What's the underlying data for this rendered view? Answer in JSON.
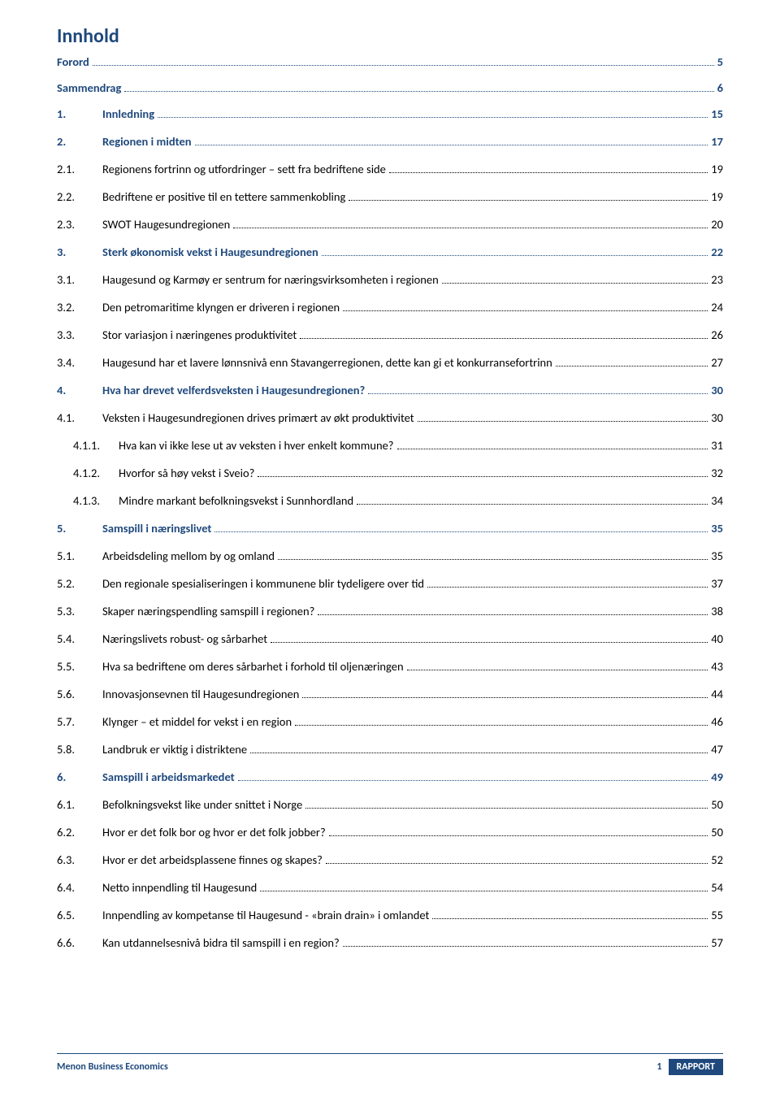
{
  "title": "Innhold",
  "colors": {
    "accent": "#1f497d",
    "text": "#000000",
    "bg": "#ffffff"
  },
  "toc": [
    {
      "level": "top",
      "num": "",
      "label": "Forord",
      "page": "5"
    },
    {
      "level": "top",
      "num": "",
      "label": "Sammendrag",
      "page": "6"
    },
    {
      "level": "lvl0",
      "num": "1.",
      "label": "Innledning",
      "page": "15"
    },
    {
      "level": "lvl0",
      "num": "2.",
      "label": "Regionen i midten",
      "page": "17"
    },
    {
      "level": "lvl1",
      "num": "2.1.",
      "label": "Regionens fortrinn og utfordringer – sett fra bedriftene side",
      "page": "19"
    },
    {
      "level": "lvl1",
      "num": "2.2.",
      "label": "Bedriftene er positive til en tettere sammenkobling",
      "page": "19"
    },
    {
      "level": "lvl1",
      "num": "2.3.",
      "label": "SWOT Haugesundregionen",
      "page": "20"
    },
    {
      "level": "lvl0",
      "num": "3.",
      "label": "Sterk økonomisk vekst i Haugesundregionen",
      "page": "22"
    },
    {
      "level": "lvl1",
      "num": "3.1.",
      "label": "Haugesund og Karmøy er sentrum for næringsvirksomheten i regionen",
      "page": "23"
    },
    {
      "level": "lvl1",
      "num": "3.2.",
      "label": "Den petromaritime klyngen er driveren i regionen",
      "page": "24"
    },
    {
      "level": "lvl1",
      "num": "3.3.",
      "label": "Stor variasjon i næringenes produktivitet",
      "page": "26"
    },
    {
      "level": "lvl1",
      "num": "3.4.",
      "label": "Haugesund har et lavere lønnsnivå enn Stavangerregionen, dette kan gi et konkurransefortrinn",
      "page": "27"
    },
    {
      "level": "lvl0",
      "num": "4.",
      "label": "Hva har drevet velferdsveksten i Haugesundregionen?",
      "page": "30"
    },
    {
      "level": "lvl1",
      "num": "4.1.",
      "label": "Veksten i Haugesundregionen drives primært av økt produktivitet",
      "page": "30"
    },
    {
      "level": "lvl2",
      "num": "4.1.1.",
      "label": "Hva kan vi ikke lese ut av veksten i hver enkelt kommune?",
      "page": "31"
    },
    {
      "level": "lvl2",
      "num": "4.1.2.",
      "label": "Hvorfor så høy vekst i Sveio?",
      "page": "32"
    },
    {
      "level": "lvl2",
      "num": "4.1.3.",
      "label": "Mindre markant befolkningsvekst i Sunnhordland",
      "page": "34"
    },
    {
      "level": "lvl0",
      "num": "5.",
      "label": "Samspill i næringslivet",
      "page": "35"
    },
    {
      "level": "lvl1",
      "num": "5.1.",
      "label": "Arbeidsdeling mellom by og omland",
      "page": "35"
    },
    {
      "level": "lvl1",
      "num": "5.2.",
      "label": "Den regionale spesialiseringen i kommunene blir tydeligere over tid",
      "page": "37"
    },
    {
      "level": "lvl1",
      "num": "5.3.",
      "label": "Skaper næringspendling samspill i regionen?",
      "page": "38"
    },
    {
      "level": "lvl1",
      "num": "5.4.",
      "label": "Næringslivets robust- og sårbarhet",
      "page": "40"
    },
    {
      "level": "lvl1",
      "num": "5.5.",
      "label": "Hva sa bedriftene om deres sårbarhet i forhold til oljenæringen",
      "page": "43"
    },
    {
      "level": "lvl1",
      "num": "5.6.",
      "label": "Innovasjonsevnen til Haugesundregionen",
      "page": "44"
    },
    {
      "level": "lvl1",
      "num": "5.7.",
      "label": "Klynger – et middel for vekst i en region",
      "page": "46"
    },
    {
      "level": "lvl1",
      "num": "5.8.",
      "label": "Landbruk er viktig i distriktene",
      "page": "47"
    },
    {
      "level": "lvl0",
      "num": "6.",
      "label": "Samspill i arbeidsmarkedet",
      "page": "49"
    },
    {
      "level": "lvl1",
      "num": "6.1.",
      "label": "Befolkningsvekst like under snittet i Norge",
      "page": "50"
    },
    {
      "level": "lvl1",
      "num": "6.2.",
      "label": "Hvor er det folk bor og hvor er det folk jobber?",
      "page": "50"
    },
    {
      "level": "lvl1",
      "num": "6.3.",
      "label": "Hvor er det arbeidsplassene finnes og skapes?",
      "page": "52"
    },
    {
      "level": "lvl1",
      "num": "6.4.",
      "label": "Netto innpendling til Haugesund",
      "page": "54"
    },
    {
      "level": "lvl1",
      "num": "6.5.",
      "label": "Innpendling av kompetanse til Haugesund - «brain drain» i omlandet",
      "page": "55"
    },
    {
      "level": "lvl1",
      "num": "6.6.",
      "label": "Kan utdannelsesnivå bidra til samspill i en region?",
      "page": "57"
    }
  ],
  "footer": {
    "left": "Menon Business Economics",
    "page": "1",
    "badge": "RAPPORT"
  }
}
